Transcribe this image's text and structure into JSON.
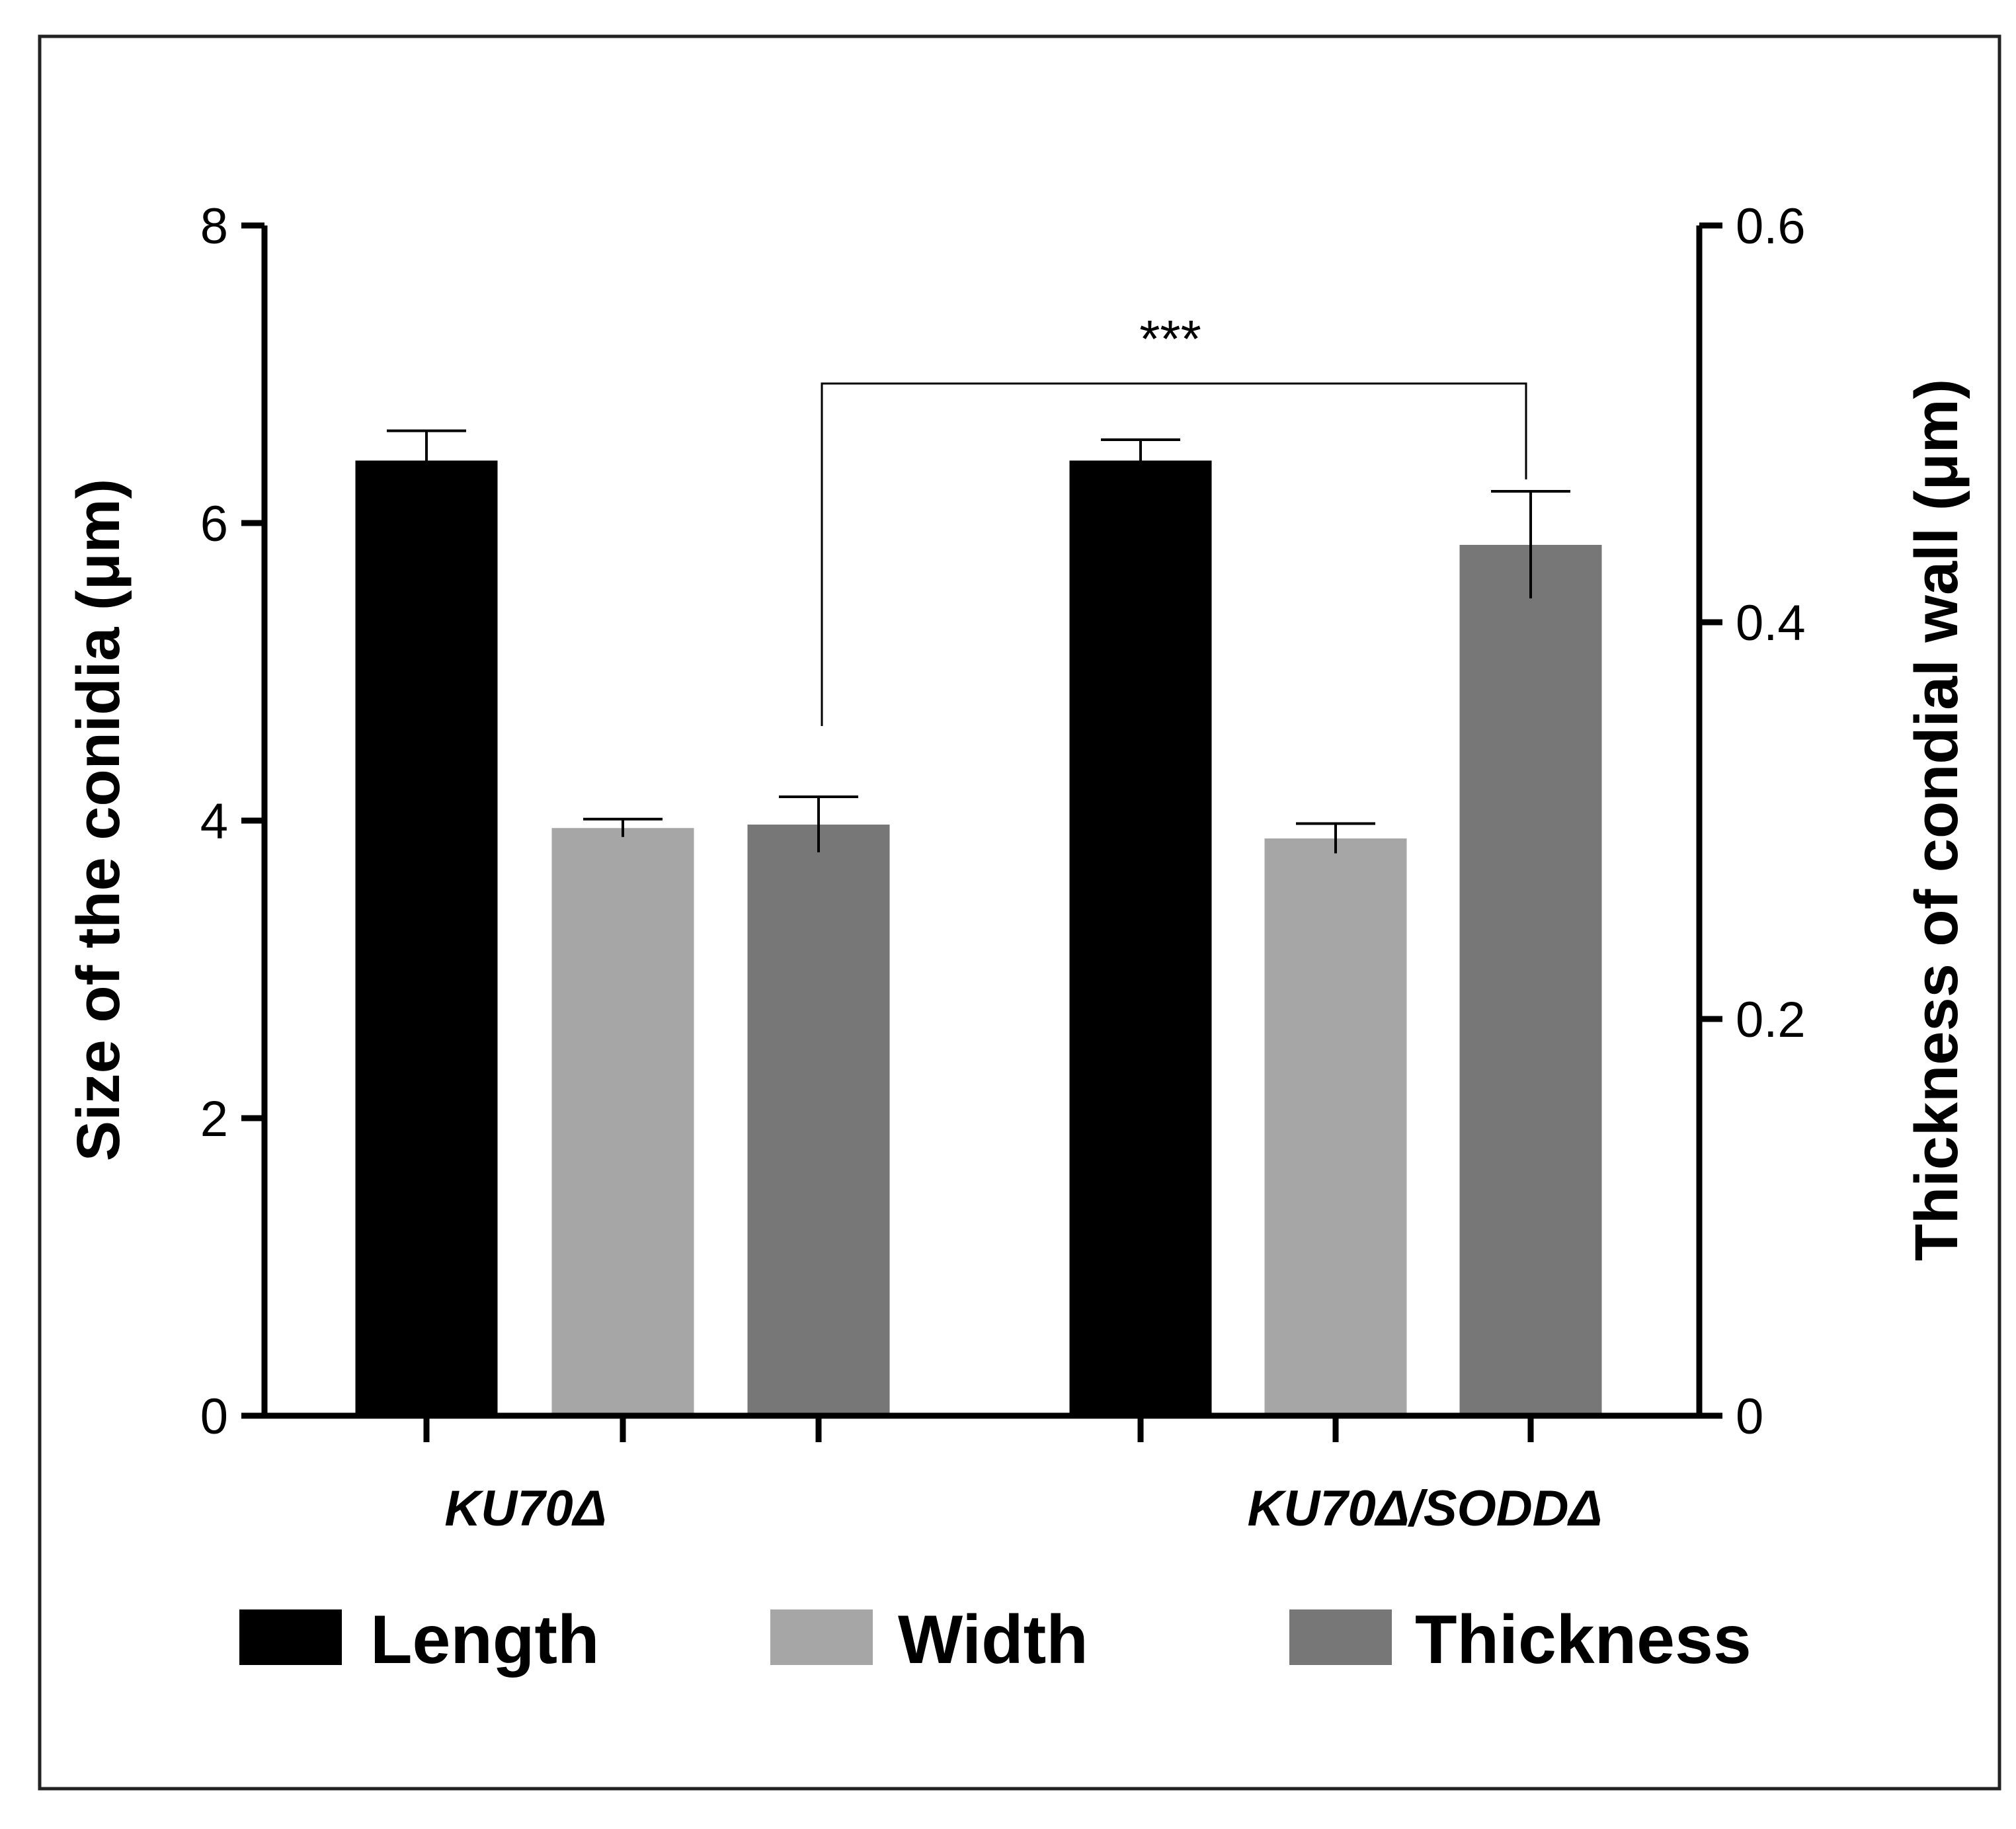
{
  "chart_data": {
    "type": "bar",
    "categories": [
      "KU70Δ",
      "KU70Δ/SODDΔ"
    ],
    "series": [
      {
        "name": "Length",
        "axis": "left",
        "color": "#000000",
        "values": [
          6.42,
          6.42
        ],
        "errors": [
          0.2,
          0.14
        ]
      },
      {
        "name": "Width",
        "axis": "left",
        "color": "#a6a6a6",
        "values": [
          3.95,
          3.88
        ],
        "errors": [
          0.06,
          0.1
        ]
      },
      {
        "name": "Thickness",
        "axis": "right",
        "color": "#777777",
        "values": [
          0.298,
          0.439
        ],
        "errors": [
          0.014,
          0.027
        ]
      }
    ],
    "left_axis": {
      "label": "Size of the conidia (μm)",
      "range": [
        0,
        8
      ],
      "ticks": [
        "0",
        "2",
        "4",
        "6",
        "8"
      ]
    },
    "right_axis": {
      "label": "Thickness of condial wall (μm)",
      "range": [
        0,
        0.6
      ],
      "ticks": [
        "0",
        "0.2",
        "0.4",
        "0.6"
      ]
    },
    "significance": {
      "text": "***",
      "between": "Thickness: KU70Δ vs KU70Δ/SODDΔ"
    },
    "legend": {
      "position": "bottom",
      "entries": [
        "Length",
        "Width",
        "Thickness"
      ]
    }
  }
}
